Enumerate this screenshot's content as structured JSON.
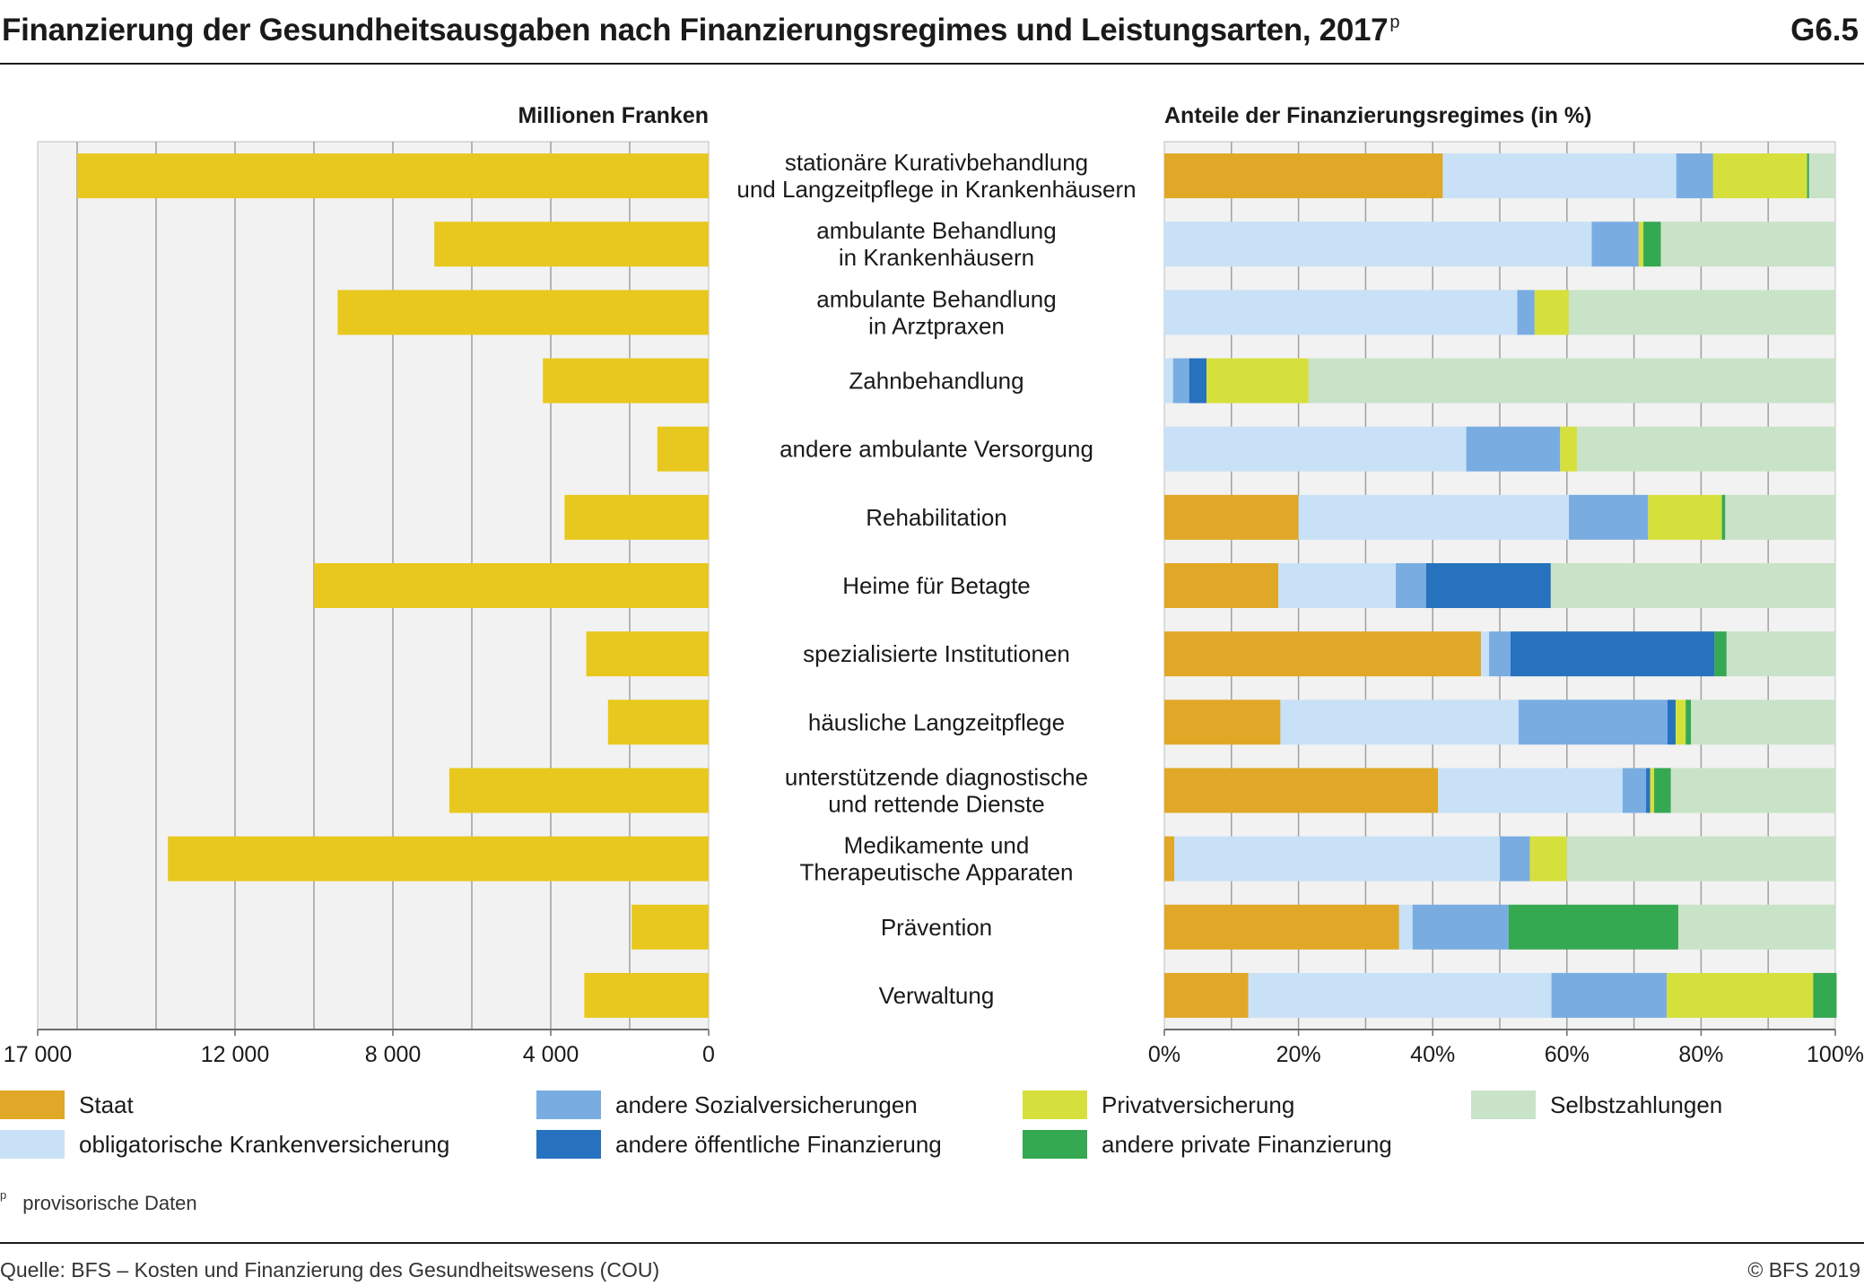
{
  "header": {
    "title": "Finanzierung der Gesundheitsausgaben nach Finanzierungsregimes und Leistungsarten, 2017",
    "title_mark": "p",
    "code": "G6.5"
  },
  "footer": {
    "note_mark": "p",
    "note": "provisorische Daten",
    "source": "Quelle: BFS – Kosten und Finanzierung des Gesundheitswesens (COU)",
    "copyright": "© BFS 2019"
  },
  "colors": {
    "background": "#f2f2f2",
    "grid": "#a0a0a0",
    "bar": "#e8c81e"
  },
  "chart_data": [
    {
      "type": "bar",
      "orientation": "horizontal",
      "axis_reversed": true,
      "title": "Millionen Franken",
      "categories": [
        "stationäre Kurativbehandlung\nund Langzeitpflege in Krankenhäusern",
        "ambulante Behandlung\nin Krankenhäusern",
        "ambulante Behandlung\nin Arztpraxen",
        "Zahnbehandlung",
        "andere ambulante Versorgung",
        "Rehabilitation",
        "Heime für Betagte",
        "spezialisierte Institutionen",
        "häusliche Langzeitpflege",
        "unterstützende diagnostische\nund rettende Dienste",
        "Medikamente und\nTherapeutische Apparaten",
        "Prävention",
        "Verwaltung"
      ],
      "values": [
        16000,
        6950,
        9400,
        4200,
        1300,
        3650,
        10000,
        3100,
        2550,
        6570,
        13700,
        1950,
        3150
      ],
      "xlim": [
        0,
        17000
      ],
      "gridlines": [
        16000,
        14000,
        12000,
        10000,
        8000,
        6000,
        4000,
        2000
      ],
      "tick_labels": [
        {
          "value": 17000,
          "label": "17 000"
        },
        {
          "value": 12000,
          "label": "12 000"
        },
        {
          "value": 8000,
          "label": "8 000"
        },
        {
          "value": 4000,
          "label": "4 000"
        },
        {
          "value": 0,
          "label": "0"
        }
      ],
      "grid": true
    },
    {
      "type": "bar",
      "orientation": "horizontal",
      "stacked": true,
      "title": "Anteile der Finanzierungsregimes (in %)",
      "xlim": [
        0,
        100
      ],
      "ticks": [
        0,
        20,
        40,
        60,
        80,
        100
      ],
      "tick_labels": [
        "0%",
        "20%",
        "40%",
        "60%",
        "80%",
        "100%"
      ],
      "legend_position": "bottom",
      "grid": true,
      "series": [
        {
          "name": "Staat",
          "color": "#e0a826",
          "values": [
            41.5,
            0,
            0,
            0,
            0,
            20,
            17,
            47.2,
            17.3,
            40.8,
            1.5,
            35,
            12.5
          ]
        },
        {
          "name": "obligatorische Krankenversicherung",
          "color": "#c9e1f6",
          "values": [
            34.8,
            63.7,
            52.6,
            1.3,
            45,
            40.3,
            17.5,
            1.2,
            35.5,
            27.5,
            48.5,
            2,
            45.2
          ]
        },
        {
          "name": "andere Sozialversicherungen",
          "color": "#79ade2",
          "values": [
            5.5,
            7,
            2.6,
            2.4,
            14,
            11.8,
            4.5,
            3.2,
            22.2,
            3.5,
            4.5,
            14.3,
            17.2
          ]
        },
        {
          "name": "andere öffentliche Finanzierung",
          "color": "#2772be",
          "values": [
            0,
            0,
            0,
            2.6,
            0,
            0,
            18.6,
            30.4,
            1.2,
            0.6,
            0,
            0,
            0
          ]
        },
        {
          "name": "Privatversicherung",
          "color": "#d6e03c",
          "values": [
            14,
            0.7,
            5.1,
            15.2,
            2.5,
            11,
            0,
            0,
            1.5,
            0.6,
            5.5,
            0,
            21.8
          ]
        },
        {
          "name": "andere private Finanzierung",
          "color": "#35a852",
          "values": [
            0.3,
            2.6,
            0,
            0,
            0,
            0.5,
            0,
            1.8,
            0.8,
            2.5,
            0,
            25.3,
            3.5
          ]
        },
        {
          "name": "Selbstzahlungen",
          "color": "#c9e3c8",
          "values": [
            3.9,
            26,
            39.7,
            78.5,
            38.5,
            16.4,
            42.4,
            16.2,
            21.5,
            24.5,
            40,
            23.4,
            0
          ]
        }
      ]
    }
  ]
}
